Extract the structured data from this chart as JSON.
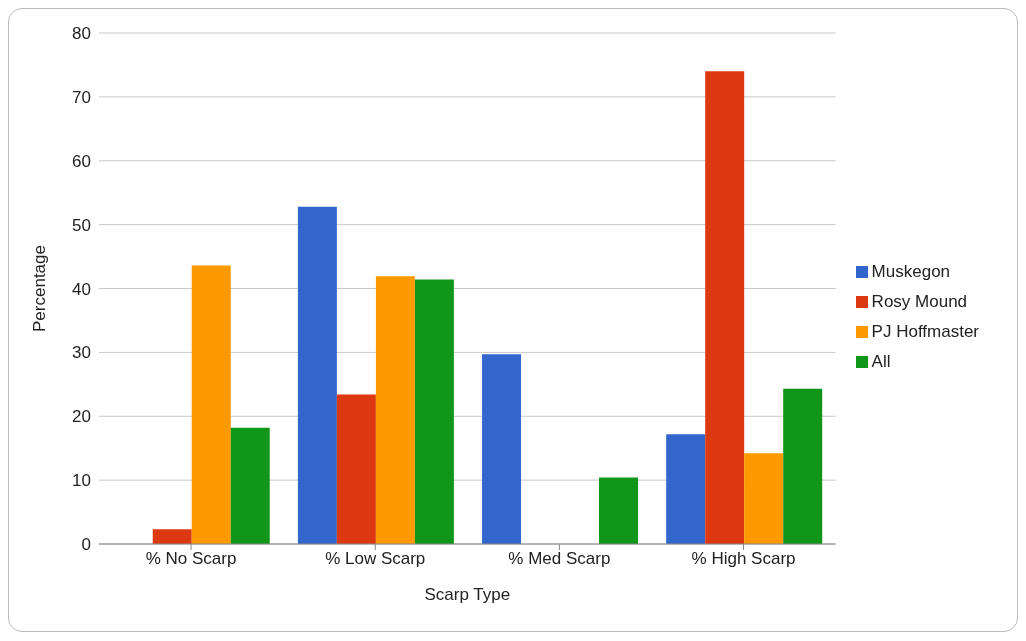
{
  "chart_data": {
    "type": "bar",
    "xlabel": "Scarp Type",
    "ylabel": "Percentage",
    "categories": [
      "% No Scarp",
      "% Low Scarp",
      "% Med Scarp",
      "% High Scarp"
    ],
    "series": [
      {
        "name": "Muskegon",
        "color": "#3366cc",
        "values": [
          0,
          52.8,
          29.7,
          17.2
        ]
      },
      {
        "name": "Rosy Mound",
        "color": "#dc3912",
        "values": [
          2.3,
          23.4,
          0,
          74
        ]
      },
      {
        "name": "PJ Hoffmaster",
        "color": "#ff9900",
        "values": [
          43.6,
          41.9,
          0,
          14.2
        ]
      },
      {
        "name": "All",
        "color": "#109618",
        "values": [
          18.2,
          41.4,
          10.4,
          24.3
        ]
      }
    ],
    "ylim": [
      0,
      80
    ],
    "yticks": [
      0,
      10,
      20,
      30,
      40,
      50,
      60,
      70,
      80
    ],
    "grid": "y",
    "legend": "right"
  }
}
